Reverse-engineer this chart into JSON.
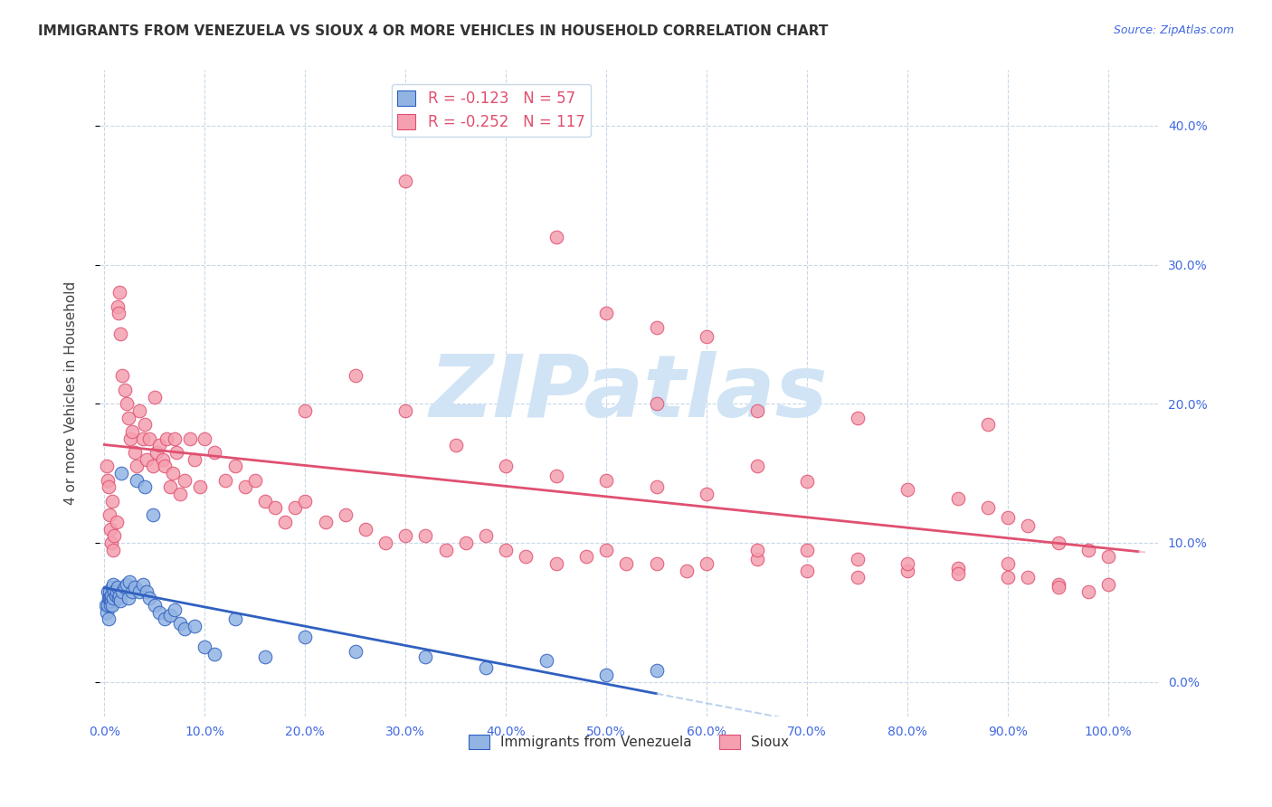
{
  "title": "IMMIGRANTS FROM VENEZUELA VS SIOUX 4 OR MORE VEHICLES IN HOUSEHOLD CORRELATION CHART",
  "source": "Source: ZipAtlas.com",
  "ylabel": "4 or more Vehicles in Household",
  "legend_label_1": "Immigrants from Venezuela",
  "legend_label_2": "Sioux",
  "R1": -0.123,
  "N1": 57,
  "R2": -0.252,
  "N2": 117,
  "color1": "#92b4e3",
  "color2": "#f4a0b0",
  "trendline1_color": "#3060c0",
  "trendline2_color": "#e05070",
  "dashed1_color": "#a0c0e8",
  "dashed2_color": "#f0b0c0",
  "xlim": [
    -0.005,
    1.05
  ],
  "ylim": [
    -0.025,
    0.44
  ],
  "xticks": [
    0.0,
    0.1,
    0.2,
    0.3,
    0.4,
    0.5,
    0.6,
    0.7,
    0.8,
    0.9,
    1.0
  ],
  "yticks": [
    0.0,
    0.1,
    0.2,
    0.3,
    0.4
  ],
  "background_color": "#ffffff",
  "watermark_text": "ZIPatlas",
  "watermark_color": "#d0e4f5",
  "tick_label_color": "#4169e1",
  "grid_color": "#c8d8e8",
  "title_color": "#333333",
  "source_color": "#4169e1",
  "ylabel_color": "#444444",
  "blue_x": [
    0.001,
    0.002,
    0.003,
    0.003,
    0.004,
    0.004,
    0.005,
    0.005,
    0.006,
    0.006,
    0.007,
    0.007,
    0.008,
    0.008,
    0.009,
    0.009,
    0.01,
    0.011,
    0.012,
    0.013,
    0.014,
    0.015,
    0.016,
    0.017,
    0.018,
    0.02,
    0.022,
    0.024,
    0.025,
    0.028,
    0.03,
    0.032,
    0.035,
    0.038,
    0.04,
    0.042,
    0.045,
    0.048,
    0.05,
    0.055,
    0.06,
    0.065,
    0.07,
    0.075,
    0.08,
    0.09,
    0.1,
    0.11,
    0.13,
    0.16,
    0.2,
    0.25,
    0.32,
    0.38,
    0.44,
    0.5,
    0.55
  ],
  "blue_y": [
    0.055,
    0.05,
    0.055,
    0.065,
    0.045,
    0.06,
    0.065,
    0.06,
    0.06,
    0.055,
    0.058,
    0.062,
    0.068,
    0.055,
    0.06,
    0.07,
    0.065,
    0.062,
    0.065,
    0.068,
    0.06,
    0.062,
    0.058,
    0.15,
    0.065,
    0.068,
    0.07,
    0.06,
    0.072,
    0.065,
    0.068,
    0.145,
    0.065,
    0.07,
    0.14,
    0.065,
    0.06,
    0.12,
    0.055,
    0.05,
    0.045,
    0.048,
    0.052,
    0.042,
    0.038,
    0.04,
    0.025,
    0.02,
    0.045,
    0.018,
    0.032,
    0.022,
    0.018,
    0.01,
    0.015,
    0.005,
    0.008
  ],
  "pink_x": [
    0.002,
    0.003,
    0.004,
    0.005,
    0.006,
    0.007,
    0.008,
    0.009,
    0.01,
    0.012,
    0.013,
    0.014,
    0.015,
    0.016,
    0.018,
    0.02,
    0.022,
    0.024,
    0.026,
    0.028,
    0.03,
    0.032,
    0.035,
    0.038,
    0.04,
    0.042,
    0.045,
    0.048,
    0.05,
    0.052,
    0.055,
    0.058,
    0.06,
    0.062,
    0.065,
    0.068,
    0.07,
    0.072,
    0.075,
    0.08,
    0.085,
    0.09,
    0.095,
    0.1,
    0.11,
    0.12,
    0.13,
    0.14,
    0.15,
    0.16,
    0.17,
    0.18,
    0.19,
    0.2,
    0.22,
    0.24,
    0.26,
    0.28,
    0.3,
    0.32,
    0.34,
    0.36,
    0.38,
    0.4,
    0.42,
    0.45,
    0.48,
    0.5,
    0.52,
    0.55,
    0.58,
    0.6,
    0.65,
    0.7,
    0.75,
    0.8,
    0.85,
    0.9,
    0.92,
    0.95,
    0.98,
    1.0,
    0.3,
    0.45,
    0.5,
    0.55,
    0.6,
    0.65,
    0.7,
    0.8,
    0.85,
    0.88,
    0.9,
    0.92,
    0.95,
    0.98,
    1.0,
    0.2,
    0.25,
    0.3,
    0.35,
    0.4,
    0.45,
    0.5,
    0.55,
    0.6,
    0.65,
    0.7,
    0.75,
    0.8,
    0.85,
    0.9,
    0.95,
    0.55,
    0.65,
    0.75,
    0.88
  ],
  "pink_y": [
    0.155,
    0.145,
    0.14,
    0.12,
    0.11,
    0.1,
    0.13,
    0.095,
    0.105,
    0.115,
    0.27,
    0.265,
    0.28,
    0.25,
    0.22,
    0.21,
    0.2,
    0.19,
    0.175,
    0.18,
    0.165,
    0.155,
    0.195,
    0.175,
    0.185,
    0.16,
    0.175,
    0.155,
    0.205,
    0.165,
    0.17,
    0.16,
    0.155,
    0.175,
    0.14,
    0.15,
    0.175,
    0.165,
    0.135,
    0.145,
    0.175,
    0.16,
    0.14,
    0.175,
    0.165,
    0.145,
    0.155,
    0.14,
    0.145,
    0.13,
    0.125,
    0.115,
    0.125,
    0.13,
    0.115,
    0.12,
    0.11,
    0.1,
    0.105,
    0.105,
    0.095,
    0.1,
    0.105,
    0.095,
    0.09,
    0.085,
    0.09,
    0.095,
    0.085,
    0.085,
    0.08,
    0.085,
    0.088,
    0.08,
    0.075,
    0.08,
    0.082,
    0.085,
    0.075,
    0.07,
    0.065,
    0.07,
    0.36,
    0.32,
    0.265,
    0.255,
    0.248,
    0.155,
    0.144,
    0.138,
    0.132,
    0.125,
    0.118,
    0.112,
    0.1,
    0.095,
    0.09,
    0.195,
    0.22,
    0.195,
    0.17,
    0.155,
    0.148,
    0.145,
    0.14,
    0.135,
    0.095,
    0.095,
    0.088,
    0.085,
    0.078,
    0.075,
    0.068,
    0.2,
    0.195,
    0.19,
    0.185
  ]
}
